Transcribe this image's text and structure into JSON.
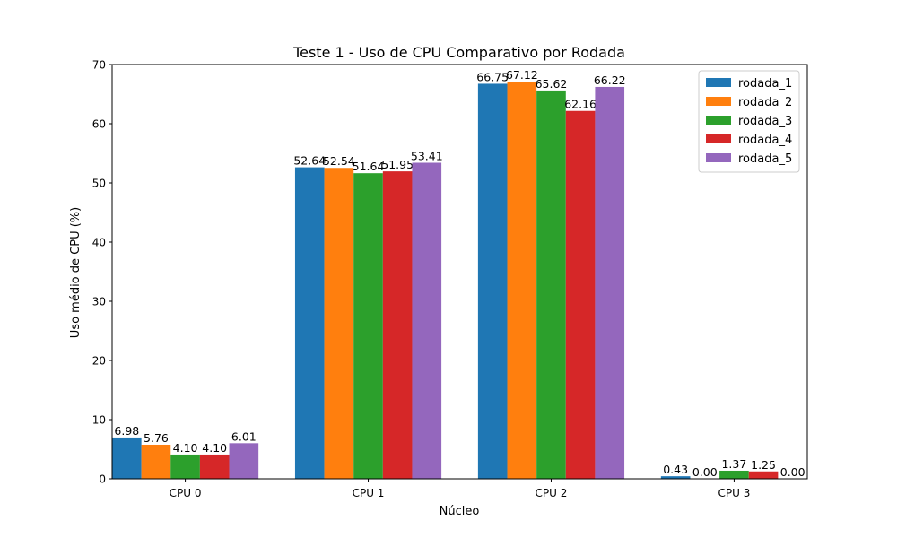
{
  "chart_data": {
    "type": "bar",
    "title": "Teste 1 - Uso de CPU Comparativo por Rodada",
    "xlabel": "Núcleo",
    "ylabel": "Uso médio de CPU (%)",
    "categories": [
      "CPU 0",
      "CPU 1",
      "CPU 2",
      "CPU 3"
    ],
    "ylim": [
      0,
      70
    ],
    "yticks": [
      0,
      10,
      20,
      30,
      40,
      50,
      60,
      70
    ],
    "grid": false,
    "legend_position": "top-right",
    "series": [
      {
        "name": "rodada_1",
        "color": "#1f77b4",
        "values": [
          6.98,
          52.64,
          66.75,
          0.43
        ],
        "labels": [
          "6.98",
          "52.64",
          "66.75",
          "0.43"
        ]
      },
      {
        "name": "rodada_2",
        "color": "#ff7f0e",
        "values": [
          5.76,
          52.54,
          67.12,
          0.0
        ],
        "labels": [
          "5.76",
          "52.54",
          "67.12",
          "0.00"
        ]
      },
      {
        "name": "rodada_3",
        "color": "#2ca02c",
        "values": [
          4.1,
          51.64,
          65.62,
          1.37
        ],
        "labels": [
          "4.10",
          "51.64",
          "65.62",
          "1.37"
        ]
      },
      {
        "name": "rodada_4",
        "color": "#d62728",
        "values": [
          4.1,
          51.95,
          62.16,
          1.25
        ],
        "labels": [
          "4.10",
          "51.95",
          "62.16",
          "1.25"
        ]
      },
      {
        "name": "rodada_5",
        "color": "#9467bd",
        "values": [
          6.01,
          53.41,
          66.22,
          0.0
        ],
        "labels": [
          "6.01",
          "53.41",
          "66.22",
          "0.00"
        ]
      }
    ]
  }
}
